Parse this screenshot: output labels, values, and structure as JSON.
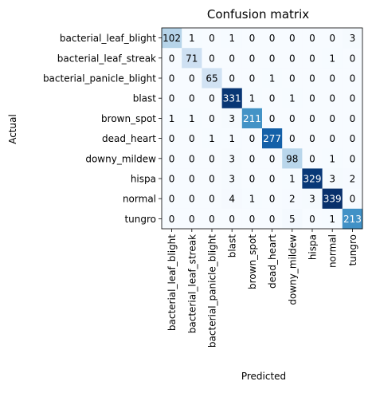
{
  "chart_data": {
    "type": "heatmap",
    "title": "Confusion matrix",
    "xlabel": "Predicted",
    "ylabel": "Actual",
    "colormap": "Blues",
    "colors": {
      "low": "#f7fbff",
      "high": "#08306b",
      "text_on_dark": "#ffffff",
      "text_on_light": "#000000"
    },
    "labels": [
      "bacterial_leaf_blight",
      "bacterial_leaf_streak",
      "bacterial_panicle_blight",
      "blast",
      "brown_spot",
      "dead_heart",
      "downy_mildew",
      "hispa",
      "normal",
      "tungro"
    ],
    "matrix": [
      [
        102,
        1,
        0,
        1,
        0,
        0,
        0,
        0,
        0,
        3
      ],
      [
        0,
        71,
        0,
        0,
        0,
        0,
        0,
        0,
        1,
        0
      ],
      [
        0,
        0,
        65,
        0,
        0,
        1,
        0,
        0,
        0,
        0
      ],
      [
        0,
        0,
        0,
        331,
        1,
        0,
        1,
        0,
        0,
        0
      ],
      [
        1,
        1,
        0,
        3,
        211,
        0,
        0,
        0,
        0,
        0
      ],
      [
        0,
        0,
        1,
        1,
        0,
        277,
        0,
        0,
        0,
        0
      ],
      [
        0,
        0,
        0,
        3,
        0,
        0,
        98,
        0,
        1,
        0
      ],
      [
        0,
        0,
        0,
        3,
        0,
        0,
        1,
        329,
        3,
        2
      ],
      [
        0,
        0,
        0,
        4,
        1,
        0,
        2,
        3,
        339,
        0
      ],
      [
        0,
        0,
        0,
        0,
        0,
        0,
        5,
        0,
        1,
        213
      ]
    ],
    "vmin": 0,
    "vmax": 339
  }
}
